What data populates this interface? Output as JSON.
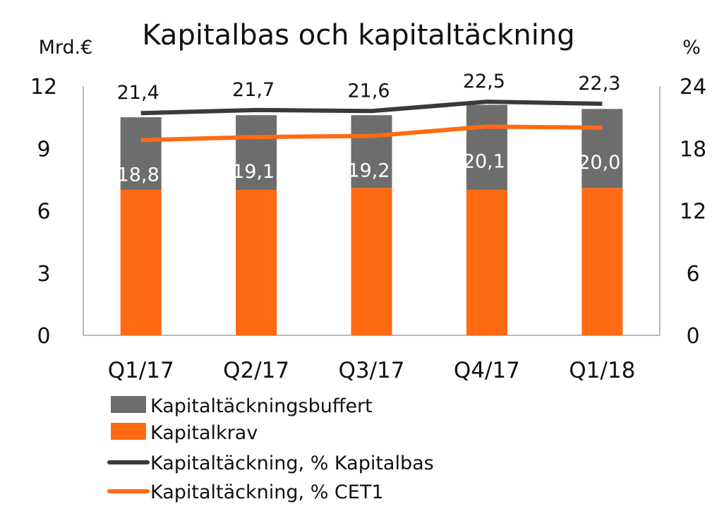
{
  "chart_data": {
    "type": "bar",
    "title": "Kapitalbas och kapitaltäckning",
    "y_left_label": "Mrd.€",
    "y_right_label": "%",
    "categories": [
      "Q1/17",
      "Q2/17",
      "Q3/17",
      "Q4/17",
      "Q1/18"
    ],
    "y_left_ticks": [
      "0",
      "3",
      "6",
      "9",
      "12"
    ],
    "y_right_ticks": [
      "0",
      "6",
      "12",
      "18",
      "24"
    ],
    "ylim_left": [
      0,
      12
    ],
    "ylim_right": [
      0,
      24
    ],
    "stacked": true,
    "series": [
      {
        "name": "Kapitaltäckningsbuffert",
        "kind": "bar",
        "axis": "left",
        "color": "#6d6d6d",
        "values": [
          3.5,
          3.6,
          3.5,
          4.1,
          3.8
        ]
      },
      {
        "name": "Kapitalkrav",
        "kind": "bar",
        "axis": "left",
        "color": "#ff6a13",
        "values": [
          7.0,
          7.0,
          7.1,
          7.0,
          7.1
        ]
      },
      {
        "name": "Kapitaltäckning, % Kapitalbas",
        "kind": "line",
        "axis": "right",
        "color": "#3a3a3a",
        "values": [
          21.4,
          21.7,
          21.6,
          22.5,
          22.3
        ],
        "labels": [
          "21,4",
          "21,7",
          "21,6",
          "22,5",
          "22,3"
        ]
      },
      {
        "name": "Kapitaltäckning, %  CET1",
        "kind": "line",
        "axis": "right",
        "color": "#ff6a13",
        "values": [
          18.8,
          19.1,
          19.2,
          20.1,
          20.0
        ],
        "labels": [
          "18,8",
          "19,1",
          "19,2",
          "20,1",
          "20,0"
        ]
      }
    ],
    "legend_position": "bottom-left",
    "grid": false
  }
}
